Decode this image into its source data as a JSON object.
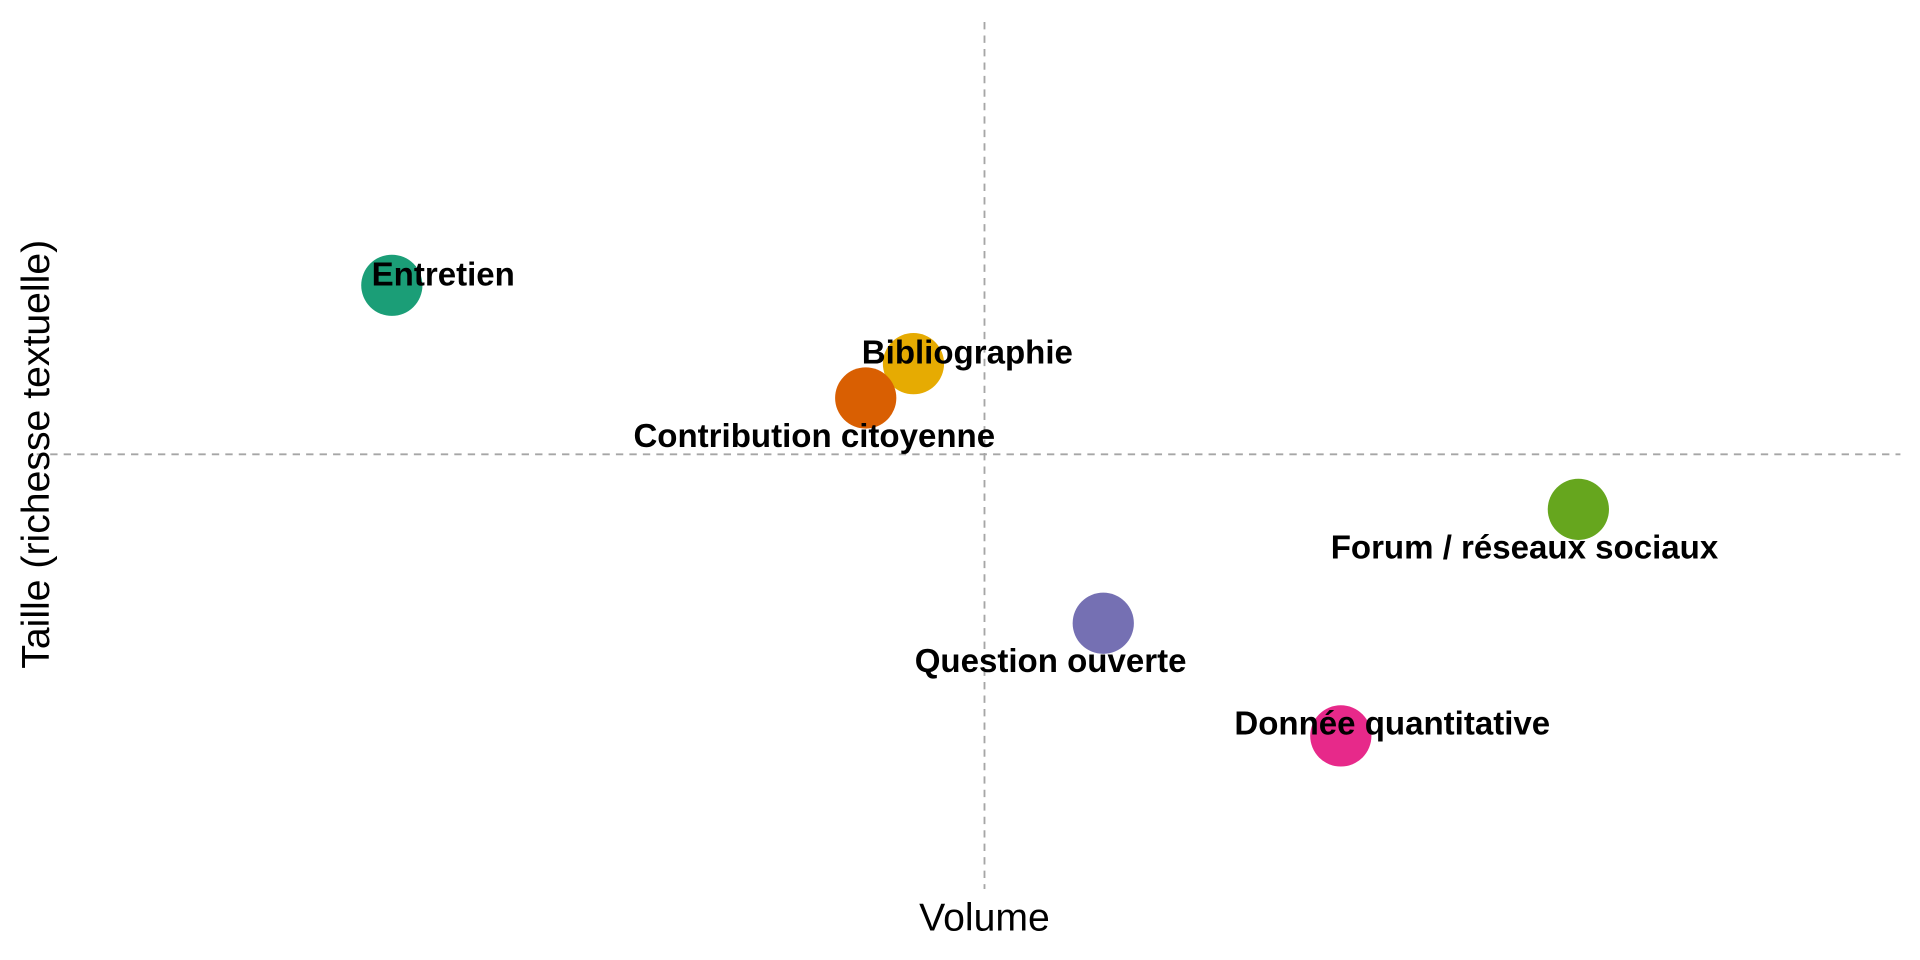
{
  "chart_data": {
    "type": "scatter",
    "title": "",
    "xlabel": "Volume",
    "ylabel": "Taille (richesse textuelle)",
    "xlim": [
      -7.74,
      7.48
    ],
    "ylim": [
      -3.55,
      3.53
    ],
    "grid": false,
    "reference_lines": {
      "x": 0,
      "y": 0
    },
    "points": [
      {
        "label": "Entretien",
        "x": -4.84,
        "y": 1.38,
        "color": "#1b9e77"
      },
      {
        "label": "Bibliographie",
        "x": -0.58,
        "y": 0.74,
        "color": "#e6ab02"
      },
      {
        "label": "Contribution citoyenne",
        "x": -0.97,
        "y": 0.46,
        "color": "#d95f02"
      },
      {
        "label": "Forum / réseaux sociaux",
        "x": 4.85,
        "y": -0.45,
        "color": "#66a61e"
      },
      {
        "label": "Question ouverte",
        "x": 0.97,
        "y": -1.38,
        "color": "#7570b3"
      },
      {
        "label": "Donnée quantitative",
        "x": 2.91,
        "y": -2.3,
        "color": "#e7298a"
      }
    ]
  }
}
